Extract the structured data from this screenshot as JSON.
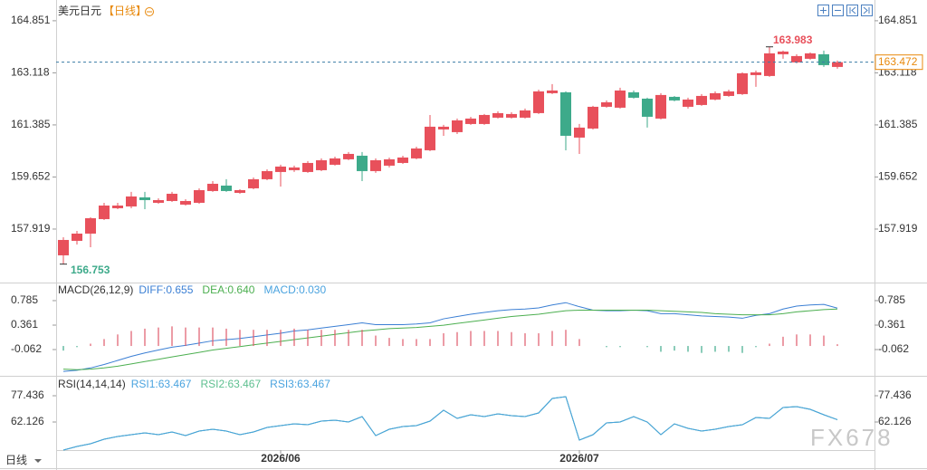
{
  "header": {
    "title": "美元日元",
    "period": "【日线】"
  },
  "footer": {
    "period": "日线"
  },
  "watermark": "FX678",
  "chart_data": [
    {
      "type": "candlestick",
      "up_color": "#e8505b",
      "down_color": "#3daa8a",
      "ylim": [
        156.2,
        165.24
      ],
      "yticks": [
        157.919,
        159.652,
        161.385,
        163.118,
        164.851
      ],
      "categories": [
        null,
        null,
        null,
        null,
        null,
        null,
        null,
        null,
        null,
        null,
        null,
        null,
        null,
        null,
        null,
        null,
        "2026/06",
        null,
        null,
        null,
        null,
        null,
        null,
        null,
        null,
        null,
        null,
        null,
        null,
        null,
        null,
        null,
        null,
        null,
        null,
        null,
        null,
        null,
        "2026/07",
        null,
        null,
        null,
        null,
        null,
        null,
        null,
        null,
        null,
        null,
        null,
        null,
        null,
        null,
        null,
        null,
        null,
        null,
        null
      ],
      "ohlc": [
        [
          157.045,
          157.648,
          156.753,
          157.557
        ],
        [
          157.527,
          157.859,
          157.406,
          157.768
        ],
        [
          157.768,
          158.312,
          157.316,
          158.281
        ],
        [
          158.25,
          158.793,
          158.22,
          158.702
        ],
        [
          158.612,
          158.793,
          158.582,
          158.702
        ],
        [
          158.672,
          159.155,
          158.612,
          159.004
        ],
        [
          158.974,
          159.155,
          158.582,
          158.883
        ],
        [
          158.793,
          158.943,
          158.763,
          158.883
        ],
        [
          158.853,
          159.155,
          158.823,
          159.094
        ],
        [
          158.733,
          158.913,
          158.702,
          158.853
        ],
        [
          158.793,
          159.275,
          158.763,
          159.215
        ],
        [
          159.185,
          159.516,
          159.155,
          159.426
        ],
        [
          159.366,
          159.577,
          159.155,
          159.185
        ],
        [
          159.124,
          159.245,
          159.094,
          159.215
        ],
        [
          159.275,
          159.637,
          159.245,
          159.577
        ],
        [
          159.577,
          159.908,
          159.546,
          159.848
        ],
        [
          159.818,
          160.059,
          159.335,
          159.999
        ],
        [
          159.878,
          160.029,
          159.818,
          159.969
        ],
        [
          159.818,
          160.18,
          159.788,
          160.119
        ],
        [
          159.878,
          160.27,
          159.848,
          160.21
        ],
        [
          160.059,
          160.33,
          160.029,
          160.27
        ],
        [
          160.24,
          160.481,
          160.21,
          160.42
        ],
        [
          160.36,
          160.481,
          159.516,
          159.848
        ],
        [
          159.848,
          160.27,
          159.788,
          160.21
        ],
        [
          160.029,
          160.3,
          159.969,
          160.24
        ],
        [
          160.119,
          160.36,
          160.089,
          160.3
        ],
        [
          160.27,
          160.661,
          160.24,
          160.601
        ],
        [
          160.541,
          161.716,
          160.511,
          161.325
        ],
        [
          161.234,
          161.385,
          161.023,
          161.325
        ],
        [
          161.144,
          161.596,
          161.083,
          161.536
        ],
        [
          161.415,
          161.656,
          161.385,
          161.596
        ],
        [
          161.415,
          161.747,
          161.385,
          161.716
        ],
        [
          161.626,
          161.837,
          161.596,
          161.777
        ],
        [
          161.626,
          161.807,
          161.596,
          161.747
        ],
        [
          161.626,
          161.928,
          161.596,
          161.867
        ],
        [
          161.777,
          162.56,
          161.747,
          162.5
        ],
        [
          162.44,
          162.741,
          162.41,
          162.53
        ],
        [
          162.47,
          162.5,
          160.541,
          161.023
        ],
        [
          160.963,
          161.415,
          160.42,
          161.295
        ],
        [
          161.264,
          162.018,
          161.234,
          161.988
        ],
        [
          161.988,
          162.199,
          161.958,
          162.138
        ],
        [
          161.958,
          162.621,
          161.928,
          162.53
        ],
        [
          162.47,
          162.53,
          162.259,
          162.289
        ],
        [
          162.259,
          162.289,
          161.295,
          161.656
        ],
        [
          161.596,
          162.44,
          161.566,
          162.38
        ],
        [
          162.319,
          162.349,
          162.169,
          162.199
        ],
        [
          161.988,
          162.289,
          161.928,
          162.229
        ],
        [
          162.048,
          162.41,
          162.018,
          162.349
        ],
        [
          162.229,
          162.5,
          162.199,
          162.44
        ],
        [
          162.349,
          162.56,
          162.319,
          162.5
        ],
        [
          162.41,
          163.133,
          162.38,
          163.103
        ],
        [
          163.043,
          163.194,
          162.651,
          163.133
        ],
        [
          163.013,
          163.983,
          162.983,
          163.766
        ],
        [
          163.736,
          163.856,
          163.585,
          163.826
        ],
        [
          163.465,
          163.736,
          163.435,
          163.676
        ],
        [
          163.585,
          163.796,
          163.555,
          163.766
        ],
        [
          163.736,
          163.856,
          163.314,
          163.374
        ],
        [
          163.314,
          163.525,
          163.254,
          163.472
        ]
      ],
      "last_color": "#e8890c"
    },
    {
      "type": "macd",
      "title": "MACD(26,12,9)",
      "ylim": [
        -0.438,
        1.051
      ],
      "yticks": [
        -0.062,
        0.361,
        0.785
      ],
      "series": [
        {
          "label": "DIFF:0.655",
          "color": "#3b7fd4",
          "values": [
            -0.44,
            -0.42,
            -0.38,
            -0.32,
            -0.25,
            -0.18,
            -0.12,
            -0.07,
            -0.02,
            0.01,
            0.05,
            0.09,
            0.11,
            0.13,
            0.16,
            0.19,
            0.22,
            0.26,
            0.28,
            0.31,
            0.34,
            0.37,
            0.4,
            0.37,
            0.37,
            0.37,
            0.38,
            0.4,
            0.47,
            0.51,
            0.55,
            0.58,
            0.61,
            0.63,
            0.64,
            0.66,
            0.71,
            0.75,
            0.68,
            0.62,
            0.61,
            0.61,
            0.62,
            0.61,
            0.56,
            0.56,
            0.54,
            0.52,
            0.51,
            0.5,
            0.48,
            0.53,
            0.56,
            0.64,
            0.69,
            0.71,
            0.72,
            0.655
          ]
        },
        {
          "label": "DEA:0.640",
          "color": "#4caf50",
          "values": [
            -0.4,
            -0.41,
            -0.4,
            -0.38,
            -0.35,
            -0.31,
            -0.27,
            -0.23,
            -0.19,
            -0.15,
            -0.11,
            -0.07,
            -0.04,
            -0.01,
            0.02,
            0.05,
            0.08,
            0.11,
            0.14,
            0.17,
            0.2,
            0.23,
            0.26,
            0.28,
            0.3,
            0.31,
            0.32,
            0.34,
            0.36,
            0.39,
            0.42,
            0.45,
            0.48,
            0.51,
            0.53,
            0.55,
            0.58,
            0.61,
            0.62,
            0.62,
            0.62,
            0.62,
            0.62,
            0.62,
            0.61,
            0.6,
            0.59,
            0.58,
            0.56,
            0.55,
            0.54,
            0.54,
            0.54,
            0.56,
            0.59,
            0.61,
            0.63,
            0.64
          ]
        },
        {
          "label": "MACD:0.030",
          "color": "#4aa3df",
          "bars": true,
          "values": [
            -0.08,
            -0.02,
            0.04,
            0.12,
            0.2,
            0.26,
            0.3,
            0.32,
            0.34,
            0.32,
            0.32,
            0.32,
            0.3,
            0.28,
            0.28,
            0.28,
            0.28,
            0.3,
            0.28,
            0.28,
            0.28,
            0.28,
            0.28,
            0.18,
            0.14,
            0.12,
            0.12,
            0.12,
            0.22,
            0.24,
            0.26,
            0.26,
            0.26,
            0.24,
            0.22,
            0.22,
            0.26,
            0.28,
            0.12,
            0.0,
            -0.02,
            -0.02,
            0.0,
            -0.02,
            -0.1,
            -0.08,
            -0.1,
            -0.12,
            -0.1,
            -0.1,
            -0.12,
            -0.02,
            0.04,
            0.16,
            0.2,
            0.2,
            0.18,
            0.03
          ]
        }
      ],
      "up_color": "#e05a6a",
      "down_color": "#3daa8a"
    },
    {
      "type": "line",
      "title": "RSI(14,14,14)",
      "ylim": [
        44.18,
        87.47
      ],
      "yticks": [
        62.126,
        77.436
      ],
      "series": [
        {
          "label": "RSI1:63.467",
          "color": "#4aa3df",
          "values": [
            45.76,
            47.87,
            49.45,
            52.09,
            53.68,
            54.73,
            55.79,
            54.73,
            56.32,
            54.2,
            56.84,
            57.9,
            56.84,
            54.73,
            56.32,
            58.96,
            60.0,
            61.07,
            60.54,
            62.65,
            63.18,
            62.13,
            65.29,
            54.2,
            57.9,
            59.48,
            60.0,
            62.65,
            68.99,
            64.24,
            66.35,
            65.29,
            66.88,
            65.82,
            65.29,
            67.4,
            75.85,
            76.91,
            51.56,
            54.73,
            61.6,
            62.13,
            65.29,
            62.13,
            54.73,
            61.07,
            58.43,
            56.84,
            57.9,
            59.48,
            60.54,
            64.76,
            64.24,
            70.57,
            71.1,
            69.52,
            66.35,
            63.467
          ]
        },
        {
          "label": "RSI2:63.467",
          "color": "#5dbf8f",
          "values": [
            45.76,
            47.87,
            49.45,
            52.09,
            53.68,
            54.73,
            55.79,
            54.73,
            56.32,
            54.2,
            56.84,
            57.9,
            56.84,
            54.73,
            56.32,
            58.96,
            60.0,
            61.07,
            60.54,
            62.65,
            63.18,
            62.13,
            65.29,
            54.2,
            57.9,
            59.48,
            60.0,
            62.65,
            68.99,
            64.24,
            66.35,
            65.29,
            66.88,
            65.82,
            65.29,
            67.4,
            75.85,
            76.91,
            51.56,
            54.73,
            61.6,
            62.13,
            65.29,
            62.13,
            54.73,
            61.07,
            58.43,
            56.84,
            57.9,
            59.48,
            60.54,
            64.76,
            64.24,
            70.57,
            71.1,
            69.52,
            66.35,
            63.467
          ]
        },
        {
          "label": "RSI3:63.467",
          "color": "#4aa3df",
          "values": [
            45.76,
            47.87,
            49.45,
            52.09,
            53.68,
            54.73,
            55.79,
            54.73,
            56.32,
            54.2,
            56.84,
            57.9,
            56.84,
            54.73,
            56.32,
            58.96,
            60.0,
            61.07,
            60.54,
            62.65,
            63.18,
            62.13,
            65.29,
            54.2,
            57.9,
            59.48,
            60.0,
            62.65,
            68.99,
            64.24,
            66.35,
            65.29,
            66.88,
            65.82,
            65.29,
            67.4,
            75.85,
            76.91,
            51.56,
            54.73,
            61.6,
            62.13,
            65.29,
            62.13,
            54.73,
            61.07,
            58.43,
            56.84,
            57.9,
            59.48,
            60.54,
            64.76,
            64.24,
            70.57,
            71.1,
            69.52,
            66.35,
            63.467
          ]
        }
      ]
    }
  ]
}
